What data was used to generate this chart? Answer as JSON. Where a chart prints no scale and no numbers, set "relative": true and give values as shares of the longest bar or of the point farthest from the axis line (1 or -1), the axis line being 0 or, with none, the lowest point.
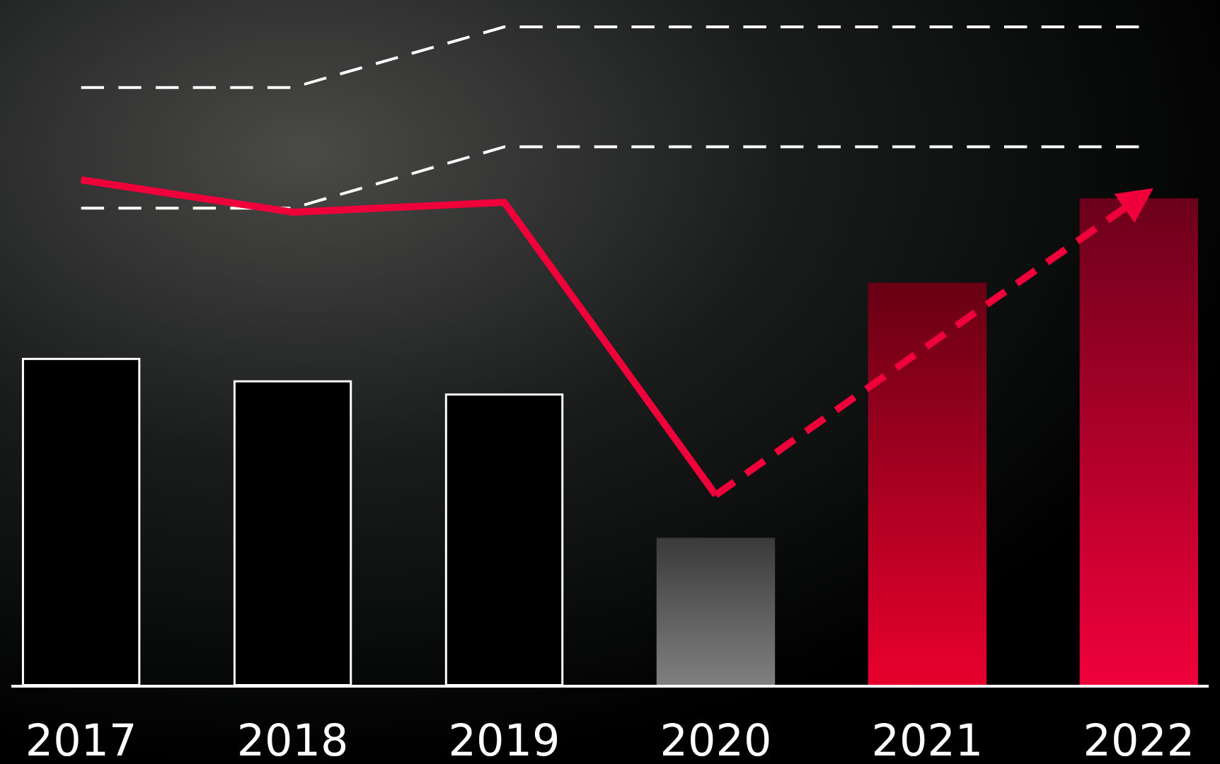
{
  "chart_data": {
    "type": "bar",
    "relative": true,
    "categories": [
      "2017",
      "2018",
      "2019",
      "2020",
      "2021",
      "2022"
    ],
    "values": [
      0.498,
      0.464,
      0.444,
      0.225,
      0.612,
      0.74
    ],
    "colors": [
      "#000000",
      "#000000",
      "#000000",
      "#808080",
      "#e8002d",
      "#f0003a"
    ],
    "marker": "none",
    "series": [
      {
        "type": "line",
        "color": "#ffffff",
        "line_style": "dashed",
        "values": [
          0.908,
          0.908,
          1,
          1,
          1,
          1
        ]
      },
      {
        "type": "line",
        "color": "#ffffff",
        "line_style": "dashed",
        "values": [
          0.725,
          0.725,
          0.818,
          0.818,
          0.818,
          0.818
        ]
      },
      {
        "type": "line",
        "color": "#f0003a",
        "line_style": "solid",
        "values": [
          0.768,
          0.719,
          0.734,
          0.29,
          null,
          null
        ]
      },
      {
        "type": "line",
        "color": "#f0003a",
        "line_style": "dashed",
        "values": [
          null,
          null,
          null,
          0.29,
          0.516,
          0.74
        ]
      }
    ]
  }
}
